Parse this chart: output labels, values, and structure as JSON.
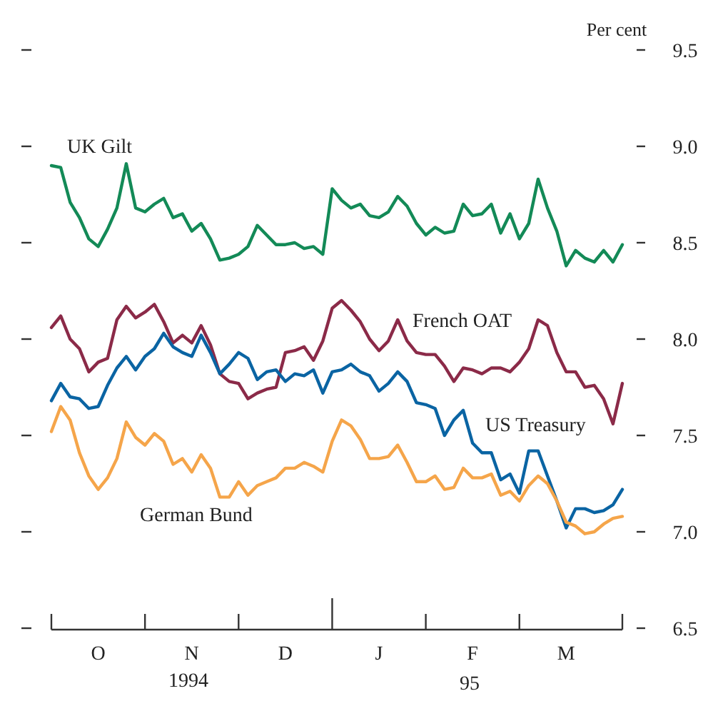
{
  "chart_data": {
    "type": "line",
    "ylabel": "Per cent",
    "series": [
      {
        "name": "UK Gilt",
        "color": "#138a57",
        "values": [
          8.9,
          8.89,
          8.71,
          8.63,
          8.52,
          8.48,
          8.57,
          8.68,
          8.91,
          8.68,
          8.66,
          8.7,
          8.73,
          8.63,
          8.65,
          8.56,
          8.6,
          8.52,
          8.41,
          8.42,
          8.44,
          8.48,
          8.59,
          8.54,
          8.49,
          8.49,
          8.5,
          8.47,
          8.48,
          8.44,
          8.78,
          8.72,
          8.68,
          8.7,
          8.64,
          8.63,
          8.66,
          8.74,
          8.69,
          8.6,
          8.54,
          8.58,
          8.55,
          8.56,
          8.7,
          8.64,
          8.65,
          8.7,
          8.55,
          8.65,
          8.52,
          8.6,
          8.83,
          8.68,
          8.56,
          8.38,
          8.46,
          8.42,
          8.4,
          8.46,
          8.4,
          8.49
        ]
      },
      {
        "name": "French OAT",
        "color": "#8b2a48",
        "values": [
          8.06,
          8.12,
          8.0,
          7.95,
          7.83,
          7.88,
          7.9,
          8.1,
          8.17,
          8.11,
          8.14,
          8.18,
          8.09,
          7.98,
          8.02,
          7.98,
          8.07,
          7.97,
          7.82,
          7.78,
          7.77,
          7.69,
          7.72,
          7.74,
          7.75,
          7.93,
          7.94,
          7.96,
          7.89,
          7.99,
          8.16,
          8.2,
          8.15,
          8.09,
          8.0,
          7.94,
          7.99,
          8.1,
          7.99,
          7.93,
          7.92,
          7.92,
          7.86,
          7.78,
          7.85,
          7.84,
          7.82,
          7.85,
          7.85,
          7.83,
          7.88,
          7.95,
          8.1,
          8.07,
          7.93,
          7.83,
          7.83,
          7.75,
          7.76,
          7.69,
          7.56,
          7.77
        ]
      },
      {
        "name": "US Treasury",
        "color": "#0a64a3",
        "values": [
          7.68,
          7.77,
          7.7,
          7.69,
          7.64,
          7.65,
          7.76,
          7.85,
          7.91,
          7.84,
          7.91,
          7.95,
          8.03,
          7.96,
          7.93,
          7.91,
          8.02,
          7.93,
          7.82,
          7.87,
          7.93,
          7.9,
          7.79,
          7.83,
          7.84,
          7.78,
          7.82,
          7.81,
          7.84,
          7.72,
          7.83,
          7.84,
          7.87,
          7.83,
          7.81,
          7.73,
          7.77,
          7.83,
          7.78,
          7.67,
          7.66,
          7.64,
          7.5,
          7.58,
          7.63,
          7.46,
          7.41,
          7.41,
          7.27,
          7.3,
          7.2,
          7.42,
          7.42,
          7.29,
          7.16,
          7.02,
          7.12,
          7.12,
          7.1,
          7.11,
          7.14,
          7.22
        ]
      },
      {
        "name": "German Bund",
        "color": "#f5a54a",
        "values": [
          7.52,
          7.65,
          7.58,
          7.41,
          7.29,
          7.22,
          7.28,
          7.38,
          7.57,
          7.49,
          7.45,
          7.51,
          7.47,
          7.35,
          7.38,
          7.31,
          7.4,
          7.33,
          7.18,
          7.18,
          7.26,
          7.19,
          7.24,
          7.26,
          7.28,
          7.33,
          7.33,
          7.36,
          7.34,
          7.31,
          7.47,
          7.58,
          7.55,
          7.48,
          7.38,
          7.38,
          7.39,
          7.45,
          7.36,
          7.26,
          7.26,
          7.29,
          7.22,
          7.23,
          7.33,
          7.28,
          7.28,
          7.3,
          7.19,
          7.21,
          7.16,
          7.24,
          7.29,
          7.25,
          7.16,
          7.05,
          7.03,
          6.99,
          7.0,
          7.04,
          7.07,
          7.08
        ]
      }
    ],
    "categories": [
      null,
      null,
      null,
      null,
      null,
      "O",
      null,
      null,
      null,
      null,
      null,
      null,
      null,
      null,
      null,
      "N",
      null,
      null,
      null,
      null,
      null,
      null,
      null,
      null,
      null,
      "D",
      null,
      null,
      null,
      null,
      null,
      null,
      null,
      null,
      null,
      "J",
      null,
      null,
      null,
      null,
      null,
      null,
      null,
      null,
      null,
      "F",
      null,
      null,
      null,
      null,
      null,
      null,
      null,
      null,
      null,
      "M",
      null,
      null,
      null,
      null,
      null,
      null
    ],
    "ylim": [
      6.5,
      9.5
    ],
    "yticks": [
      6.5,
      {
        "value": 7,
        "label": "7.0"
      },
      7.5,
      {
        "value": 8,
        "label": "8.0"
      },
      8.5,
      {
        "value": 9,
        "label": "9.0"
      },
      9.5
    ],
    "annotations": [
      "1994",
      "95"
    ],
    "grid": false,
    "legend": false,
    "marker": "none",
    "line_style": "solid"
  }
}
